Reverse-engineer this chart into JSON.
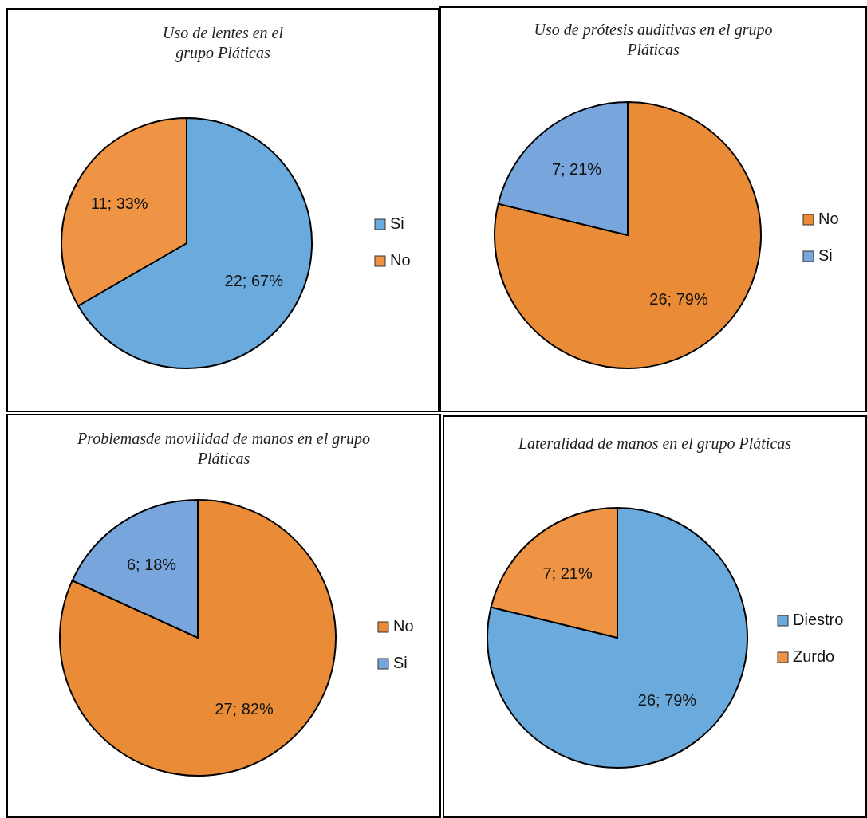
{
  "chart_data": [
    {
      "type": "pie",
      "title": "Uso de lentes en el grupo Pláticas",
      "categories": [
        "Si",
        "No"
      ],
      "values": [
        22,
        11
      ],
      "colors": [
        "#6aaadc",
        "#ee9444"
      ],
      "value_labels": [
        "22; 67%",
        "11; 33%"
      ],
      "legend": "right"
    },
    {
      "type": "pie",
      "title": "Uso de prótesis auditivas en el grupo Pláticas",
      "categories": [
        "No",
        "Si"
      ],
      "values": [
        26,
        7
      ],
      "colors": [
        "#ea8c37",
        "#78a6dc"
      ],
      "value_labels": [
        "26; 79%",
        "7; 21%"
      ],
      "legend": "right"
    },
    {
      "type": "pie",
      "title": "Problemasde movilidad de manos en el grupo Pláticas",
      "categories": [
        "No",
        "Si"
      ],
      "values": [
        27,
        6
      ],
      "colors": [
        "#ea8c37",
        "#78a6dc"
      ],
      "value_labels": [
        "27; 82%",
        "6; 18%"
      ],
      "legend": "right"
    },
    {
      "type": "pie",
      "title": "Lateralidad de manos en el grupo Pláticas",
      "categories": [
        "Diestro",
        "Zurdo"
      ],
      "values": [
        26,
        7
      ],
      "colors": [
        "#6aaadc",
        "#ee9444"
      ],
      "value_labels": [
        "26; 79%",
        "7; 21%"
      ],
      "legend": "right"
    }
  ]
}
